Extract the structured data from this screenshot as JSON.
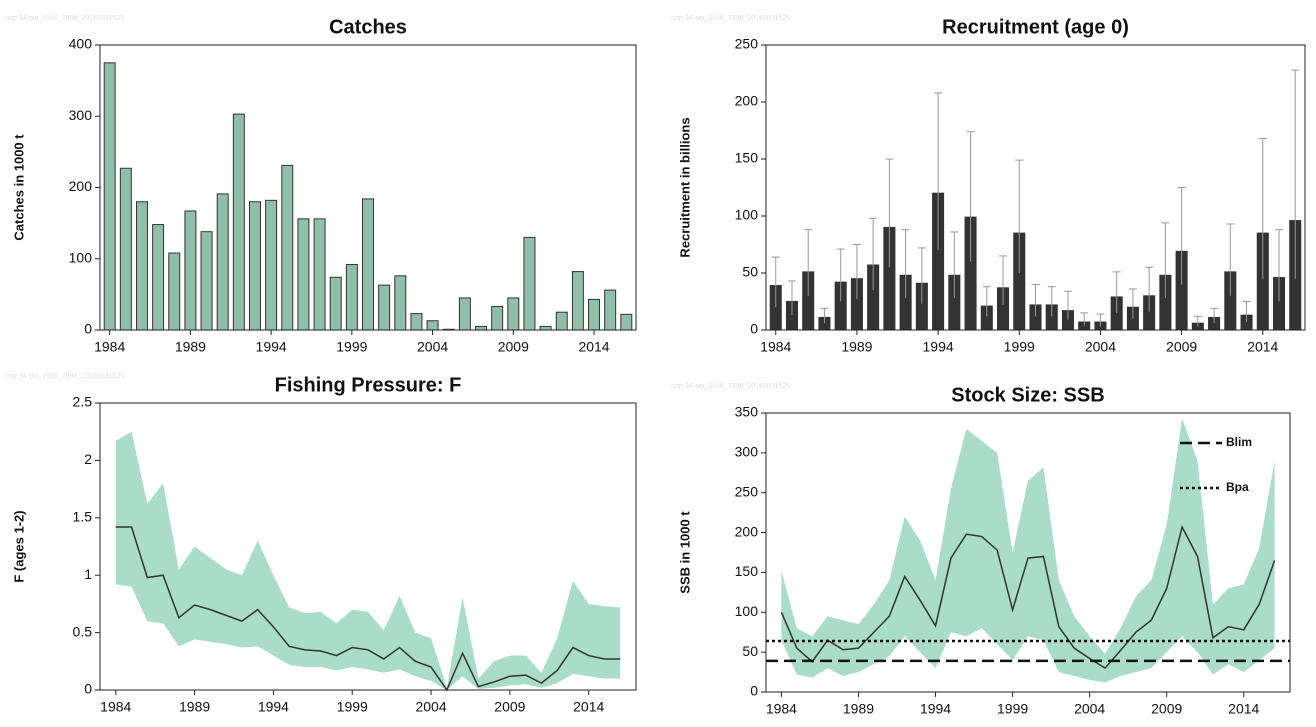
{
  "chart_data": [
    {
      "type": "bar",
      "title": "Catches",
      "ylabel": "Catches in 1000 t",
      "watermark": "nop-34-oct_2016_7998_20161031525",
      "x": [
        1984,
        1985,
        1986,
        1987,
        1988,
        1989,
        1990,
        1991,
        1992,
        1993,
        1994,
        1995,
        1996,
        1997,
        1998,
        1999,
        2000,
        2001,
        2002,
        2003,
        2004,
        2005,
        2006,
        2007,
        2008,
        2009,
        2010,
        2011,
        2012,
        2013,
        2014,
        2015,
        2016
      ],
      "values": [
        375,
        227,
        180,
        148,
        108,
        167,
        138,
        191,
        303,
        180,
        182,
        231,
        156,
        156,
        74,
        92,
        184,
        63,
        76,
        23,
        13,
        1,
        45,
        5,
        33,
        45,
        130,
        5,
        25,
        82,
        43,
        56,
        22
      ],
      "color": "#8fbfa9",
      "xlim": [
        1983.4,
        2016.6
      ],
      "xticks": [
        1984,
        1989,
        1994,
        1999,
        2004,
        2009,
        2014
      ],
      "ylim": [
        0,
        400
      ],
      "yticks": [
        0,
        100,
        200,
        300,
        400
      ]
    },
    {
      "type": "bar",
      "title": "Recruitment (age 0)",
      "ylabel": "Recruitment in billions",
      "watermark": "nop-34-oct_2016_7998_20161031525",
      "x": [
        1984,
        1985,
        1986,
        1987,
        1988,
        1989,
        1990,
        1991,
        1992,
        1993,
        1994,
        1995,
        1996,
        1997,
        1998,
        1999,
        2000,
        2001,
        2002,
        2003,
        2004,
        2005,
        2006,
        2007,
        2008,
        2009,
        2010,
        2011,
        2012,
        2013,
        2014,
        2015,
        2016
      ],
      "values": [
        39,
        25,
        51,
        11,
        42,
        45,
        57,
        90,
        48,
        41,
        120,
        48,
        99,
        21,
        37,
        85,
        22,
        22,
        17,
        7,
        7,
        29,
        20,
        30,
        48,
        69,
        6,
        11,
        51,
        13,
        85,
        46,
        96
      ],
      "lower": [
        20,
        13,
        30,
        6,
        25,
        27,
        35,
        55,
        28,
        23,
        70,
        28,
        60,
        12,
        22,
        50,
        12,
        12,
        9,
        4,
        3,
        15,
        10,
        16,
        28,
        40,
        3,
        6,
        30,
        7,
        45,
        25,
        45
      ],
      "upper": [
        64,
        43,
        88,
        19,
        71,
        75,
        98,
        150,
        88,
        72,
        208,
        86,
        174,
        38,
        65,
        149,
        40,
        38,
        34,
        15,
        14,
        51,
        36,
        55,
        94,
        125,
        12,
        19,
        93,
        25,
        168,
        88,
        228
      ],
      "color": "#333333",
      "xlim": [
        1983.4,
        2016.6
      ],
      "xticks": [
        1984,
        1989,
        1994,
        1999,
        2004,
        2009,
        2014
      ],
      "ylim": [
        0,
        250
      ],
      "yticks": [
        0,
        50,
        100,
        150,
        200,
        250
      ]
    },
    {
      "type": "line",
      "title": "Fishing Pressure: F",
      "ylabel": "F (ages 1-2)",
      "watermark": "nop-34-oct_2016_7998_20161031525",
      "x": [
        1984,
        1985,
        1986,
        1987,
        1988,
        1989,
        1990,
        1991,
        1992,
        1993,
        1994,
        1995,
        1996,
        1997,
        1998,
        1999,
        2000,
        2001,
        2002,
        2003,
        2004,
        2005,
        2006,
        2007,
        2008,
        2009,
        2010,
        2011,
        2012,
        2013,
        2014,
        2015,
        2016
      ],
      "values": [
        1.42,
        1.42,
        0.98,
        1.0,
        0.63,
        0.74,
        0.7,
        0.65,
        0.6,
        0.7,
        0.55,
        0.38,
        0.35,
        0.34,
        0.3,
        0.37,
        0.35,
        0.27,
        0.37,
        0.25,
        0.2,
        0.0,
        0.32,
        0.03,
        0.07,
        0.12,
        0.13,
        0.06,
        0.17,
        0.37,
        0.3,
        0.27,
        0.27
      ],
      "lower": [
        0.92,
        0.9,
        0.6,
        0.58,
        0.38,
        0.44,
        0.42,
        0.4,
        0.37,
        0.38,
        0.3,
        0.22,
        0.2,
        0.2,
        0.17,
        0.2,
        0.18,
        0.15,
        0.18,
        0.12,
        0.08,
        0.0,
        0.12,
        0.01,
        0.02,
        0.04,
        0.05,
        0.02,
        0.06,
        0.14,
        0.12,
        0.1,
        0.1
      ],
      "upper": [
        2.17,
        2.25,
        1.62,
        1.8,
        1.05,
        1.25,
        1.15,
        1.05,
        1.0,
        1.3,
        1.0,
        0.72,
        0.67,
        0.68,
        0.58,
        0.7,
        0.68,
        0.52,
        0.82,
        0.5,
        0.45,
        0.02,
        0.8,
        0.1,
        0.25,
        0.3,
        0.3,
        0.15,
        0.45,
        0.95,
        0.75,
        0.73,
        0.72
      ],
      "color": "#333333",
      "band_color": "#a9dcc9",
      "xlim": [
        1983,
        2017
      ],
      "xticks": [
        1984,
        1989,
        1994,
        1999,
        2004,
        2009,
        2014
      ],
      "ylim": [
        0,
        2.5
      ],
      "yticks": [
        0,
        0.5,
        1,
        1.5,
        2,
        2.5
      ]
    },
    {
      "type": "line",
      "title": "Stock Size: SSB",
      "ylabel": "SSB in 1000 t",
      "watermark": "nop-34-oct_2016_7998_20161031525",
      "x": [
        1984,
        1985,
        1986,
        1987,
        1988,
        1989,
        1990,
        1991,
        1992,
        1993,
        1994,
        1995,
        1996,
        1997,
        1998,
        1999,
        2000,
        2001,
        2002,
        2003,
        2004,
        2005,
        2006,
        2007,
        2008,
        2009,
        2010,
        2011,
        2012,
        2013,
        2014,
        2015,
        2016
      ],
      "values": [
        100,
        55,
        38,
        65,
        53,
        55,
        75,
        95,
        145,
        115,
        83,
        168,
        198,
        195,
        178,
        103,
        168,
        170,
        82,
        55,
        42,
        30,
        52,
        75,
        90,
        130,
        207,
        170,
        68,
        82,
        78,
        110,
        165
      ],
      "lower": [
        65,
        22,
        18,
        30,
        20,
        25,
        35,
        45,
        70,
        50,
        30,
        75,
        70,
        80,
        60,
        40,
        70,
        65,
        25,
        20,
        15,
        12,
        20,
        25,
        30,
        50,
        70,
        50,
        22,
        35,
        25,
        40,
        55
      ],
      "upper": [
        152,
        80,
        70,
        95,
        90,
        85,
        110,
        140,
        220,
        190,
        140,
        255,
        330,
        315,
        300,
        175,
        265,
        282,
        140,
        95,
        70,
        48,
        80,
        120,
        140,
        210,
        343,
        290,
        110,
        130,
        135,
        180,
        290
      ],
      "color": "#333333",
      "band_color": "#a9dcc9",
      "xlim": [
        1983,
        2017
      ],
      "xticks": [
        1984,
        1989,
        1994,
        1999,
        2004,
        2009,
        2014
      ],
      "ylim": [
        0,
        350
      ],
      "yticks": [
        0,
        50,
        100,
        150,
        200,
        250,
        300,
        350
      ],
      "reference_lines": [
        {
          "name": "Blim",
          "value": 39,
          "style": "dashed"
        },
        {
          "name": "Bpa",
          "value": 64,
          "style": "dotted"
        }
      ]
    }
  ]
}
